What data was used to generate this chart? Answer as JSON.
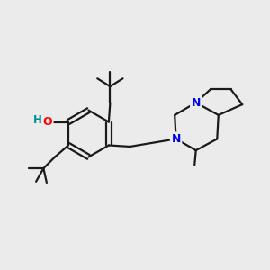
{
  "background_color": "#ebebeb",
  "bond_color": "#1a1a1a",
  "atom_colors": {
    "O": "#ff0000",
    "N": "#0000ee",
    "H_O": "#009090",
    "C": "#1a1a1a"
  },
  "figsize": [
    3.0,
    3.0
  ],
  "dpi": 100,
  "xlim": [
    0,
    10
  ],
  "ylim": [
    0,
    10
  ]
}
